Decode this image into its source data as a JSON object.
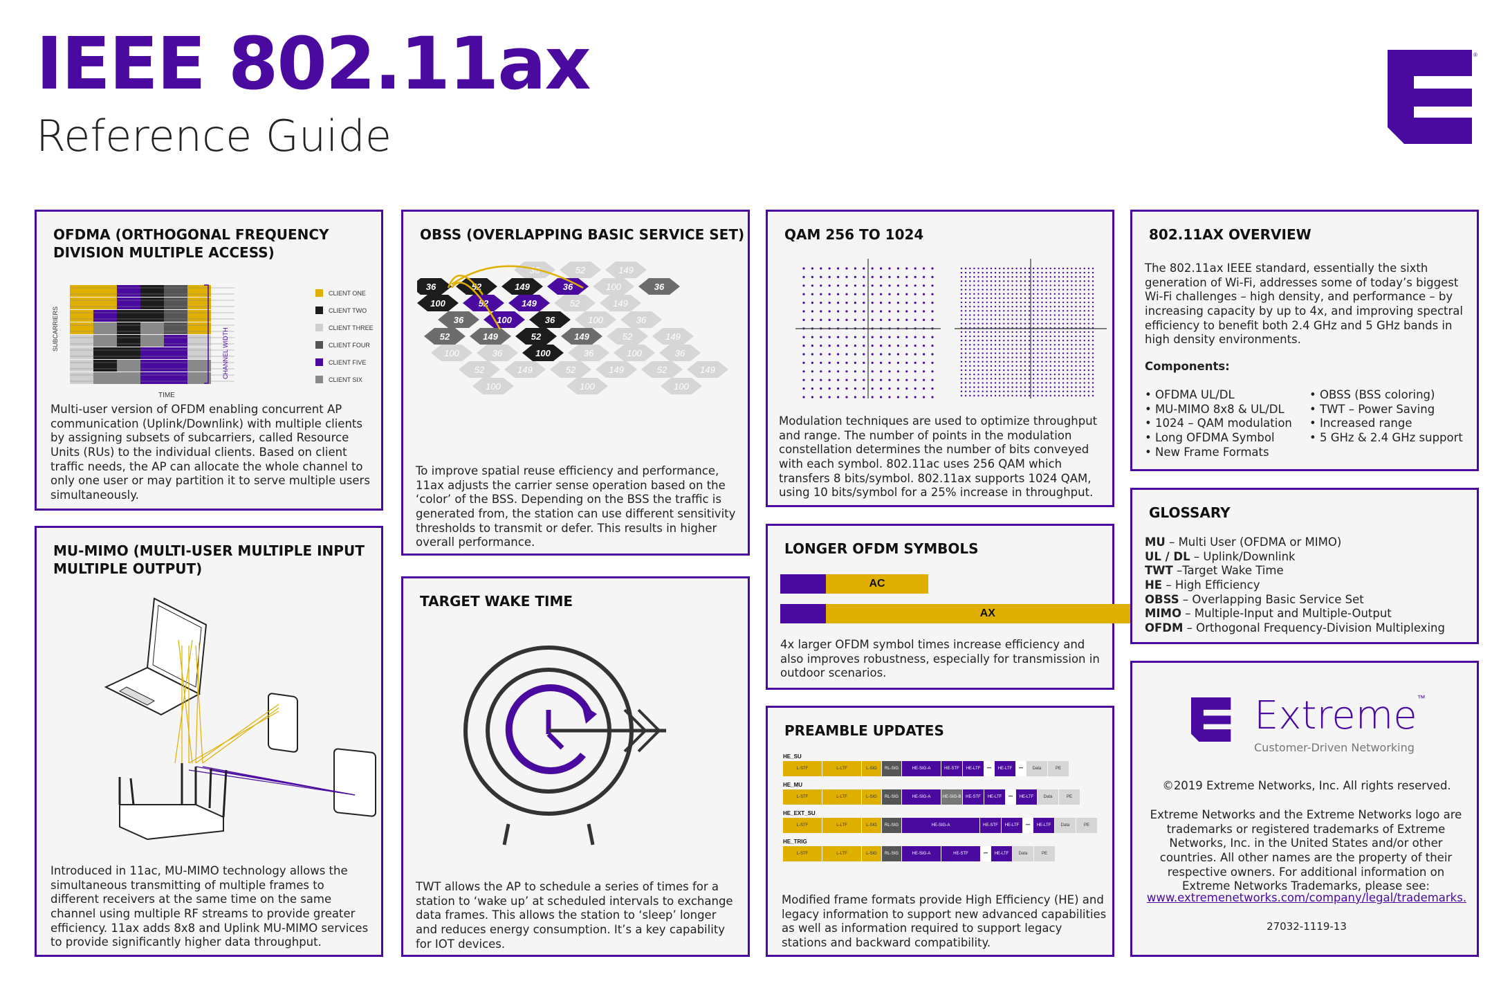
{
  "header": {
    "title": "IEEE 802.11ax",
    "subtitle": "Reference Guide"
  },
  "colors": {
    "brand": "#4a0aa0",
    "gold": "#e0b000",
    "dark": "#1c1c1c",
    "grey": "#8a8a8a",
    "light": "#cfcfcf"
  },
  "ofdma": {
    "title": "OFDMA (ORTHOGONAL FREQUENCY DIVISION MULTIPLE ACCESS)",
    "legend": [
      "CLIENT ONE",
      "CLIENT TWO",
      "CLIENT THREE",
      "CLIENT FOUR",
      "CLIENT FIVE",
      "CLIENT SIX"
    ],
    "axis_y": "SUBCARRIERS",
    "axis_x": "TIME",
    "axis_right": "CHANNEL WIDTH",
    "body": "Multi-user version of OFDM enabling concurrent AP communication (Uplink/Downlink) with multiple clients by assigning subsets of subcarriers, called Resource Units (RUs) to the individual clients. Based on client traffic needs, the AP can allocate the whole channel to only one user or may partition it to serve multiple users simultaneously."
  },
  "obss": {
    "title": "OBSS (OVERLAPPING BASIC SERVICE SET)",
    "hex_labels": [
      "36",
      "52",
      "100",
      "149"
    ],
    "body": "To improve spatial reuse efficiency and performance, 11ax adjusts the carrier sense operation based on the ‘color’ of the BSS. Depending on the BSS the traffic is generated from, the station can use different sensitivity thresholds to transmit or defer. This results in higher overall performance."
  },
  "qam": {
    "title": "QAM 256 TO 1024",
    "body": "Modulation techniques are used to optimize throughput and range. The number of points in the modulation constellation determines the number of bits conveyed with each symbol. 802.11ac uses 256 QAM which transfers 8 bits/symbol. 802.11ax supports 1024 QAM, using 10 bits/symbol for a 25% increase in throughput."
  },
  "overview": {
    "title": "802.11AX OVERVIEW",
    "body": "The 802.11ax IEEE standard, essentially the sixth generation of Wi-Fi, addresses some of today’s biggest Wi-Fi challenges – high density, and performance – by increasing capacity by up to 4x, and improving spectral efficiency to benefit both 2.4 GHz and 5 GHz bands in high density environments.",
    "components_label": "Components:",
    "components_left": [
      "OFDMA UL/DL",
      "MU-MIMO 8x8 & UL/DL",
      "1024 – QAM modulation",
      "Long OFDMA Symbol",
      "New Frame Formats"
    ],
    "components_right": [
      "OBSS (BSS coloring)",
      "TWT – Power Saving",
      "Increased range",
      "5 GHz & 2.4 GHz support"
    ]
  },
  "mumimo": {
    "title": "MU-MIMO  (MULTI-USER MULTIPLE INPUT MULTIPLE OUTPUT)",
    "body": "Introduced in 11ac, MU-MIMO technology allows the simultaneous transmitting of multiple frames to different receivers at the same time on the same channel using multiple RF streams to provide greater efficiency. 11ax adds 8x8 and Uplink MU-MIMO services to provide significantly higher data throughput."
  },
  "twt": {
    "title": "TARGET WAKE TIME",
    "body": "TWT allows the AP to schedule a series of times for a station to ‘wake up’ at scheduled intervals to exchange data frames. This allows the station to ‘sleep’ longer and reduces energy consumption. It’s a key capability for IOT devices."
  },
  "longer": {
    "title": "LONGER OFDM SYMBOLS",
    "ac_label": "AC",
    "ax_label": "AX",
    "ac_relative": 1,
    "ax_relative": 4,
    "body": "4x larger OFDM symbol times increase efficiency and also improves robustness, especially for transmission in outdoor scenarios."
  },
  "preamble": {
    "title": "PREAMBLE UPDATES",
    "rows": [
      {
        "name": "HE_SU",
        "fields": [
          "L-STF",
          "L-LTF",
          "L-SIG",
          "RL-SIG",
          "HE-SIG-A",
          "HE-STF",
          "HE-LTF",
          "•••",
          "HE-LTF",
          "•••",
          "Data",
          "PE"
        ]
      },
      {
        "name": "HE_MU",
        "fields": [
          "L-STF",
          "L-LTF",
          "L-SIG",
          "RL-SIG",
          "HE-SIG-A",
          "HE-SIG-B",
          "HE-STF",
          "HE-LTF",
          "•••",
          "HE-LTF",
          "Data",
          "PE"
        ]
      },
      {
        "name": "HE_EXT_SU",
        "fields": [
          "L-STF",
          "L-LTF",
          "L-SIG",
          "RL-SIG",
          "HE-SIG-A",
          "HE-STF",
          "HE-LTF",
          "•••",
          "HE-LTF",
          "Data",
          "PE"
        ]
      },
      {
        "name": "HE_TRIG",
        "fields": [
          "L-STF",
          "L-LTF",
          "L-SIG",
          "RL-SIG",
          "HE-SIG-A",
          "HE-STF",
          "•••",
          "HE-LTF",
          "Data",
          "PE"
        ]
      }
    ],
    "body": "Modified frame formats provide High Efficiency (HE) and legacy information to support new  advanced capabilities as well as information required to support legacy stations and backward compatibility."
  },
  "glossary": {
    "title": "GLOSSARY",
    "items": [
      {
        "term": "MU",
        "def": " – Multi User (OFDMA or MIMO)"
      },
      {
        "term": "UL / DL",
        "def": " – Uplink/Downlink"
      },
      {
        "term": "TWT",
        "def": " –Target Wake Time"
      },
      {
        "term": "HE",
        "def": " – High Efficiency"
      },
      {
        "term": "OBSS",
        "def": " – Overlapping Basic Service Set"
      },
      {
        "term": "MIMO",
        "def": " – Multiple-Input and Multiple-Output"
      },
      {
        "term": "OFDM",
        "def": " – Orthogonal Frequency-Division Multiplexing"
      }
    ]
  },
  "brand": {
    "name": "Extreme",
    "tm": "™",
    "tagline": "Customer-Driven Networking",
    "copyright": "©2019 Extreme Networks, Inc. All rights reserved.",
    "legal": "Extreme Networks and the Extreme Networks logo are trademarks or registered trademarks of Extreme Networks, Inc. in the United States and/or other countries. All other names are the property of their respective owners. For additional information on Extreme Networks Trademarks, please see:",
    "link": "www.extremenetworks.com/company/legal/trademarks.",
    "code": "27032-1119-13",
    "reg": "®"
  }
}
